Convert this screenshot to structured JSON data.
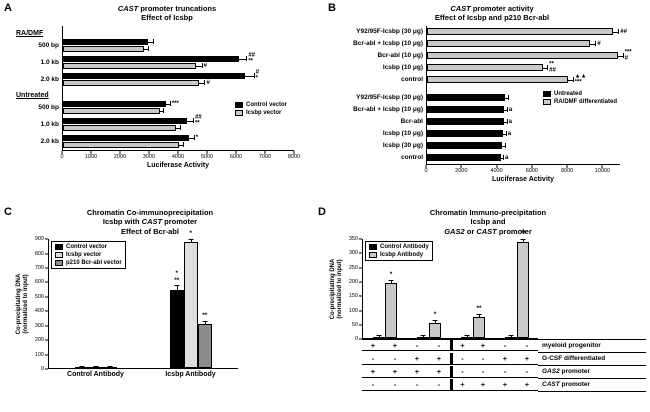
{
  "figure": {
    "panel_labels": {
      "A": "A",
      "B": "B",
      "C": "C",
      "D": "D"
    }
  },
  "colors": {
    "black": "#000000",
    "light_gray": "#c9c9c9",
    "lighter_gray": "#dedede",
    "mid_gray": "#8c8c8c"
  },
  "chart_data": [
    {
      "id": "panel-a",
      "type": "bar",
      "orientation": "horizontal",
      "title_lines": [
        "CAST promoter truncations",
        "Effect of Icsbp"
      ],
      "xlabel": "Luciferase Activity",
      "xlim": [
        0,
        8000
      ],
      "xticks": [
        0,
        1000,
        2000,
        3000,
        4000,
        5000,
        6000,
        7000,
        8000
      ],
      "series": [
        {
          "name": "Control vector",
          "color": "#000000"
        },
        {
          "name": "Icsbp vector",
          "color": "#c9c9c9"
        }
      ],
      "groups": [
        {
          "header": "RA/DMF",
          "rows": [
            {
              "label": "500 bp",
              "values": [
                2950,
                2800
              ],
              "errors": [
                150,
                150
              ],
              "annotations": [
                "",
                ""
              ]
            },
            {
              "label": "1.0 kb",
              "values": [
                6100,
                4600
              ],
              "errors": [
                250,
                200
              ],
              "annotations": [
                "##\n**",
                "#"
              ]
            },
            {
              "label": "2.0 kb",
              "values": [
                6300,
                4700
              ],
              "errors": [
                300,
                200
              ],
              "annotations": [
                "#\n*",
                "#"
              ]
            }
          ]
        },
        {
          "header": "Untreated",
          "rows": [
            {
              "label": "500 bp",
              "values": [
                3550,
                3350
              ],
              "errors": [
                150,
                120
              ],
              "annotations": [
                "***",
                ""
              ]
            },
            {
              "label": "1.0 kb",
              "values": [
                4300,
                3900
              ],
              "errors": [
                200,
                150
              ],
              "annotations": [
                "##\n**",
                ""
              ]
            },
            {
              "label": "2.0 kb",
              "values": [
                4350,
                4000
              ],
              "errors": [
                180,
                150
              ],
              "annotations": [
                "*",
                ""
              ]
            }
          ]
        }
      ],
      "legend": {
        "items": [
          {
            "label": "Control vector",
            "color": "#000000"
          },
          {
            "label": "Icsbp vector",
            "color": "#c9c9c9"
          }
        ]
      }
    },
    {
      "id": "panel-b",
      "type": "bar",
      "orientation": "horizontal",
      "title_lines": [
        "CAST promoter activity",
        "Effect of Icsbp and p210 Bcr-abl"
      ],
      "xlabel": "Luciferase Activity",
      "xlim": [
        0,
        11000
      ],
      "xticks": [
        0,
        2000,
        4000,
        6000,
        8000,
        10000
      ],
      "series": [
        {
          "name": "Untreated",
          "color": "#000000"
        },
        {
          "name": "RA/DMF differentiated",
          "color": "#c9c9c9"
        }
      ],
      "groups": [
        {
          "series_color": "#c9c9c9",
          "rows": [
            {
              "label": "Y92/95F-Icsbp (30 μg)",
              "values": [
                10600
              ],
              "errors": [
                300
              ],
              "annotations": [
                "##"
              ]
            },
            {
              "label": "Bcr-abl + Icsbp (10 μg)",
              "values": [
                9300
              ],
              "errors": [
                300
              ],
              "annotations": [
                "#"
              ]
            },
            {
              "label": "Bcr-abl (10 μg)",
              "values": [
                10900
              ],
              "errors": [
                250
              ],
              "annotations": [
                "***\n#"
              ]
            },
            {
              "label": "Icsbp (10 μg)",
              "values": [
                6600
              ],
              "errors": [
                250
              ],
              "annotations": [
                "**\n##"
              ]
            },
            {
              "label": "control",
              "values": [
                8050
              ],
              "errors": [
                250
              ],
              "annotations": [
                "▲▲\n***"
              ]
            }
          ]
        },
        {
          "series_color": "#000000",
          "rows": [
            {
              "label": "Y92/95F-Icsbp (30 μg)",
              "values": [
                4450
              ],
              "errors": [
                150
              ],
              "annotations": [
                ""
              ]
            },
            {
              "label": "Bcr-abl + Icsbp (10 μg)",
              "values": [
                4400
              ],
              "errors": [
                150
              ],
              "annotations": [
                "a"
              ]
            },
            {
              "label": "Bcr-abl",
              "values": [
                4400
              ],
              "errors": [
                140
              ],
              "annotations": [
                "a"
              ]
            },
            {
              "label": "Icsbp (10 μg)",
              "values": [
                4350
              ],
              "errors": [
                140
              ],
              "annotations": [
                "a"
              ]
            },
            {
              "label": "Icsbp (30 μg)",
              "values": [
                4300
              ],
              "errors": [
                130
              ],
              "annotations": [
                ""
              ]
            },
            {
              "label": "control",
              "values": [
                4200
              ],
              "errors": [
                130
              ],
              "annotations": [
                "a"
              ]
            }
          ]
        }
      ],
      "legend": {
        "items": [
          {
            "label": "Untreated",
            "color": "#000000"
          },
          {
            "label": "RA/DMF differentiated",
            "color": "#c9c9c9"
          }
        ]
      }
    },
    {
      "id": "panel-c",
      "type": "bar",
      "orientation": "vertical",
      "title_lines": [
        "Chromatin Co-immunoprecipitation",
        "Icsbp with CAST promoter",
        "Effect of Bcr-abl"
      ],
      "ylabel": "Co-precipitating DNA\n(normalized to input)",
      "ylim": [
        0,
        900
      ],
      "yticks": [
        0,
        100,
        200,
        300,
        400,
        500,
        600,
        700,
        800,
        900
      ],
      "series": [
        {
          "name": "Control vector",
          "color": "#000000"
        },
        {
          "name": "Icsbp vector",
          "color": "#dedede"
        },
        {
          "name": "p210 Bcr-abl vector",
          "color": "#8c8c8c"
        }
      ],
      "groups": [
        {
          "label": "Control Antibody",
          "values": [
            6,
            6,
            6
          ],
          "errors": [
            2,
            2,
            2
          ],
          "annotations": [
            "",
            "",
            ""
          ]
        },
        {
          "label": "Icsbp Antibody",
          "values": [
            545,
            880,
            310
          ],
          "errors": [
            25,
            15,
            15
          ],
          "annotations": [
            "*\n**",
            "*",
            "**"
          ]
        }
      ],
      "legend": {
        "items": [
          {
            "label": "Control vector",
            "color": "#000000"
          },
          {
            "label": "Icsbp vector",
            "color": "#dedede"
          },
          {
            "label": "p210 Bcr-abl vector",
            "color": "#8c8c8c"
          }
        ]
      }
    },
    {
      "id": "panel-d",
      "type": "bar",
      "orientation": "vertical",
      "title_lines": [
        "Chromatin Immuno-precipitation",
        "Icsbp and",
        "GAS2 or CAST promoter"
      ],
      "ylabel": "Co-precipitating DNA\n(normalized to input)",
      "ylim": [
        0,
        350
      ],
      "yticks": [
        0,
        50,
        100,
        150,
        200,
        250,
        300,
        350
      ],
      "series": [
        {
          "name": "Control Antibody",
          "color": "#000000"
        },
        {
          "name": "Icsbp Antibody",
          "color": "#c9c9c9"
        }
      ],
      "groups": [
        {
          "values": [
            5,
            195
          ],
          "errors": [
            2,
            8
          ],
          "annotations": [
            "",
            "*"
          ]
        },
        {
          "values": [
            4,
            55
          ],
          "errors": [
            2,
            6
          ],
          "annotations": [
            "",
            "*"
          ]
        },
        {
          "values": [
            5,
            75
          ],
          "errors": [
            2,
            6
          ],
          "annotations": [
            "",
            "**"
          ]
        },
        {
          "values": [
            5,
            340
          ],
          "errors": [
            2,
            8
          ],
          "annotations": [
            "",
            "**"
          ]
        }
      ],
      "condition_table": {
        "divider_after_column": 4,
        "rows": [
          {
            "label": "myeloid progenitor",
            "signs": [
              "+",
              "+",
              "-",
              "-",
              "+",
              "+",
              "-",
              "-"
            ]
          },
          {
            "label": "G-CSF differentiated",
            "signs": [
              "-",
              "-",
              "+",
              "+",
              "-",
              "-",
              "+",
              "+"
            ]
          },
          {
            "label": "GAS2 promoter",
            "signs": [
              "+",
              "+",
              "+",
              "+",
              "-",
              "-",
              "-",
              "-"
            ]
          },
          {
            "label": "CAST promoter",
            "signs": [
              "-",
              "-",
              "-",
              "-",
              "+",
              "+",
              "+",
              "+"
            ]
          }
        ]
      },
      "legend": {
        "items": [
          {
            "label": "Control Antibody",
            "color": "#000000"
          },
          {
            "label": "Icsbp Antibody",
            "color": "#c9c9c9"
          }
        ]
      }
    }
  ]
}
